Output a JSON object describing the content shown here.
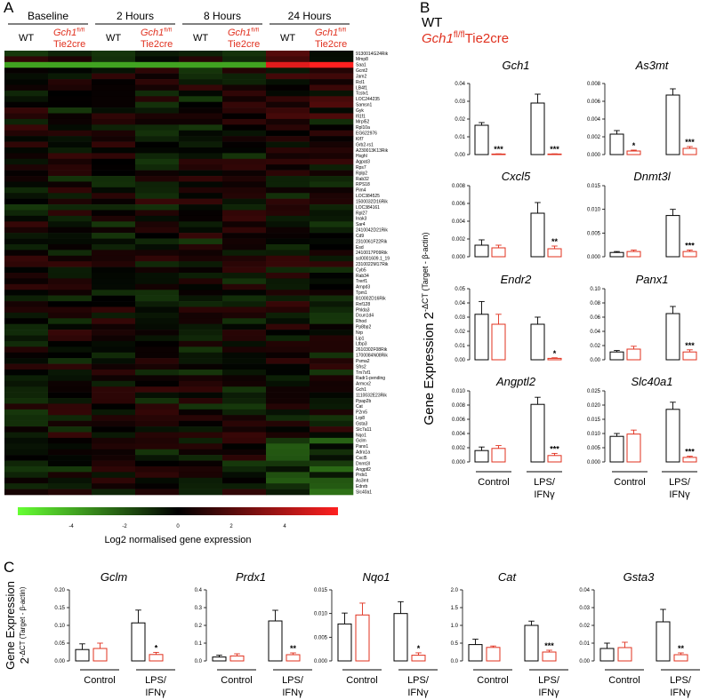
{
  "panels": {
    "a": "A",
    "b": "B",
    "c": "C"
  },
  "heatmap": {
    "timepoints": [
      "Baseline",
      "2 Hours",
      "8 Hours",
      "24 Hours"
    ],
    "genotype_wt": "WT",
    "genotype_ko_prefix": "Gch1",
    "genotype_ko_sup": "fl/fl",
    "genotype_ko_suffix": "Tie2cre",
    "genes": [
      "9130014G24Rik",
      "Mmp8",
      "Saa1",
      "Gcnt2",
      "Jam2",
      "Rcl1",
      "LB4f1",
      "Tcstv1",
      "LOC244235",
      "Samsn1",
      "Gyk",
      "Ifi1f1",
      "Mrpl52",
      "Rpl10a",
      "EG622976",
      "Klf7",
      "Grb2-rs1",
      "A230013K13Rik",
      "Hsghl",
      "Agpat3",
      "Rps7",
      "Rplp2",
      "Rab32",
      "RPS18",
      "Pim4",
      "LOC384525",
      "1500032D16Rik",
      "LOC384161",
      "Rpl27",
      "Inak3",
      "Sar4",
      "2410042D21Rik",
      "Cd9",
      "2310061F22Rik",
      "Esd",
      "2410017P09Rik",
      "scl0001609.1_19",
      "2310022M17Rik",
      "Cyb5",
      "Rab34",
      "Trerf1",
      "Arnpd3",
      "Tpm1",
      "B10002D16Rik",
      "Rnf128",
      "Phlda3",
      "Dcun1d4",
      "Rhod",
      "Pp8bp2",
      "Nrp",
      "Lip1",
      "Ltbp3",
      "2610302F08Rik",
      "1700084N08Rik",
      "Psma2",
      "Sfrs2",
      "Tm7sf1",
      "Radr1-pending",
      "Armcx2",
      "Gch1",
      "1110032E23Rik",
      "Ppap2b",
      "Cat",
      "P2rx5",
      "Lrp8",
      "Gsta3",
      "Slc7a11",
      "Nqo1",
      "Gclm",
      "Panx1",
      "Adra1a",
      "Cxcl5",
      "Dnmt3l",
      "Angptl2",
      "Prdx1",
      "As3mt",
      "Ednrb",
      "Slc40a1"
    ],
    "colorbar_ticks": [
      "-4",
      "-2",
      "0",
      "2",
      "4"
    ],
    "colorbar_values": [
      -4,
      -2,
      0,
      2,
      4
    ],
    "colorbar_label": "Log2 normalised gene expression",
    "colors": {
      "low": "#66ff33",
      "mid": "#000000",
      "high": "#ff2020"
    }
  },
  "legend_b": {
    "wt": "WT",
    "ko_prefix": "Gch1",
    "ko_sup": "fl/fl",
    "ko_suffix": "Tie2cre"
  },
  "ylabel_b": {
    "main": "Gene Expression 2",
    "sup": "-ΔCT (Target - β-actin)"
  },
  "ylabel_c": {
    "line1": "Gene Expression",
    "line2": "2",
    "sup": "-ΔCT (Target - β-actin)"
  },
  "xgroups": [
    "Control",
    "LPS/",
    "IFNγ"
  ],
  "colors": {
    "wt": "#000000",
    "ko": "#e0301e"
  },
  "chart_data": [
    {
      "type": "bar",
      "panel": "B",
      "title": "Gch1",
      "categories": [
        "Control",
        "LPS/IFNγ"
      ],
      "series": [
        {
          "name": "WT",
          "values": [
            0.0165,
            0.029
          ],
          "err": [
            0.0015,
            0.005
          ]
        },
        {
          "name": "Gch1 fl/fl Tie2cre",
          "values": [
            0.0003,
            0.0003
          ],
          "err": [
            0.0001,
            0.0001
          ]
        }
      ],
      "yticks": [
        "0.00",
        "0.01",
        "0.02",
        "0.03",
        "0.04"
      ],
      "ylim": [
        0,
        0.04
      ],
      "sig": [
        "***",
        "***"
      ]
    },
    {
      "type": "bar",
      "panel": "B",
      "title": "As3mt",
      "categories": [
        "Control",
        "LPS/IFNγ"
      ],
      "series": [
        {
          "name": "WT",
          "values": [
            0.0023,
            0.0067
          ],
          "err": [
            0.0004,
            0.0007
          ]
        },
        {
          "name": "Gch1 fl/fl Tie2cre",
          "values": [
            0.0004,
            0.0007
          ],
          "err": [
            0.0001,
            0.0002
          ]
        }
      ],
      "yticks": [
        "0.000",
        "0.002",
        "0.004",
        "0.006",
        "0.008"
      ],
      "ylim": [
        0,
        0.008
      ],
      "sig": [
        "*",
        "***"
      ]
    },
    {
      "type": "bar",
      "panel": "B",
      "title": "Cxcl5",
      "categories": [
        "Control",
        "LPS/IFNγ"
      ],
      "series": [
        {
          "name": "WT",
          "values": [
            0.0013,
            0.0049
          ],
          "err": [
            0.0006,
            0.0012
          ]
        },
        {
          "name": "Gch1 fl/fl Tie2cre",
          "values": [
            0.001,
            0.0009
          ],
          "err": [
            0.0003,
            0.0003
          ]
        }
      ],
      "yticks": [
        "0.000",
        "0.002",
        "0.004",
        "0.006",
        "0.008"
      ],
      "ylim": [
        0,
        0.008
      ],
      "sig": [
        "",
        "**"
      ]
    },
    {
      "type": "bar",
      "panel": "B",
      "title": "Dnmt3l",
      "categories": [
        "Control",
        "LPS/IFNγ"
      ],
      "series": [
        {
          "name": "WT",
          "values": [
            0.0009,
            0.0087
          ],
          "err": [
            0.0002,
            0.0013
          ]
        },
        {
          "name": "Gch1 fl/fl Tie2cre",
          "values": [
            0.0011,
            0.0011
          ],
          "err": [
            0.0003,
            0.0003
          ]
        }
      ],
      "yticks": [
        "0.000",
        "0.005",
        "0.010",
        "0.015"
      ],
      "ylim": [
        0,
        0.015
      ],
      "sig": [
        "",
        "***"
      ]
    },
    {
      "type": "bar",
      "panel": "B",
      "title": "Endr2",
      "categories": [
        "Control",
        "LPS/IFNγ"
      ],
      "series": [
        {
          "name": "WT",
          "values": [
            0.032,
            0.025
          ],
          "err": [
            0.009,
            0.005
          ]
        },
        {
          "name": "Gch1 fl/fl Tie2cre",
          "values": [
            0.025,
            0.001
          ],
          "err": [
            0.007,
            0.0004
          ]
        }
      ],
      "yticks": [
        "0.00",
        "0.01",
        "0.02",
        "0.03",
        "0.04",
        "0.05"
      ],
      "ylim": [
        0,
        0.05
      ],
      "sig": [
        "",
        "*"
      ]
    },
    {
      "type": "bar",
      "panel": "B",
      "title": "Panx1",
      "categories": [
        "Control",
        "LPS/IFNγ"
      ],
      "series": [
        {
          "name": "WT",
          "values": [
            0.011,
            0.065
          ],
          "err": [
            0.002,
            0.01
          ]
        },
        {
          "name": "Gch1 fl/fl Tie2cre",
          "values": [
            0.015,
            0.011
          ],
          "err": [
            0.004,
            0.003
          ]
        }
      ],
      "yticks": [
        "0.00",
        "0.02",
        "0.04",
        "0.06",
        "0.08",
        "0.10"
      ],
      "ylim": [
        0,
        0.1
      ],
      "sig": [
        "",
        "***"
      ]
    },
    {
      "type": "bar",
      "panel": "B",
      "title": "Angptl2",
      "categories": [
        "Control",
        "LPS/IFNγ"
      ],
      "series": [
        {
          "name": "WT",
          "values": [
            0.0016,
            0.0081
          ],
          "err": [
            0.0005,
            0.001
          ]
        },
        {
          "name": "Gch1 fl/fl Tie2cre",
          "values": [
            0.0019,
            0.0009
          ],
          "err": [
            0.0004,
            0.0003
          ]
        }
      ],
      "yticks": [
        "0.000",
        "0.002",
        "0.004",
        "0.006",
        "0.008",
        "0.010"
      ],
      "ylim": [
        0,
        0.01
      ],
      "sig": [
        "",
        "***"
      ]
    },
    {
      "type": "bar",
      "panel": "B",
      "title": "Slc40a1",
      "categories": [
        "Control",
        "LPS/IFNγ"
      ],
      "series": [
        {
          "name": "WT",
          "values": [
            0.009,
            0.0185
          ],
          "err": [
            0.001,
            0.0025
          ]
        },
        {
          "name": "Gch1 fl/fl Tie2cre",
          "values": [
            0.0098,
            0.0016
          ],
          "err": [
            0.0014,
            0.0004
          ]
        }
      ],
      "yticks": [
        "0.000",
        "0.005",
        "0.010",
        "0.015",
        "0.020",
        "0.025"
      ],
      "ylim": [
        0,
        0.025
      ],
      "sig": [
        "",
        "***"
      ]
    },
    {
      "type": "bar",
      "panel": "C",
      "title": "Gclm",
      "categories": [
        "Control",
        "LPS/IFNγ"
      ],
      "series": [
        {
          "name": "WT",
          "values": [
            0.032,
            0.107
          ],
          "err": [
            0.016,
            0.036
          ]
        },
        {
          "name": "Gch1 fl/fl Tie2cre",
          "values": [
            0.035,
            0.018
          ],
          "err": [
            0.015,
            0.006
          ]
        }
      ],
      "yticks": [
        "0.00",
        "0.05",
        "0.10",
        "0.15",
        "0.20"
      ],
      "ylim": [
        0,
        0.2
      ],
      "sig": [
        "",
        "*"
      ]
    },
    {
      "type": "bar",
      "panel": "C",
      "title": "Prdx1",
      "categories": [
        "Control",
        "LPS/IFNγ"
      ],
      "series": [
        {
          "name": "WT",
          "values": [
            0.022,
            0.225
          ],
          "err": [
            0.01,
            0.06
          ]
        },
        {
          "name": "Gch1 fl/fl Tie2cre",
          "values": [
            0.028,
            0.035
          ],
          "err": [
            0.012,
            0.01
          ]
        }
      ],
      "yticks": [
        "0.0",
        "0.1",
        "0.2",
        "0.3",
        "0.4"
      ],
      "ylim": [
        0,
        0.4
      ],
      "sig": [
        "",
        "**"
      ]
    },
    {
      "type": "bar",
      "panel": "C",
      "title": "Nqo1",
      "categories": [
        "Control",
        "LPS/IFNγ"
      ],
      "series": [
        {
          "name": "WT",
          "values": [
            0.0078,
            0.01
          ],
          "err": [
            0.0023,
            0.0025
          ]
        },
        {
          "name": "Gch1 fl/fl Tie2cre",
          "values": [
            0.0097,
            0.0012
          ],
          "err": [
            0.0025,
            0.0005
          ]
        }
      ],
      "yticks": [
        "0.000",
        "0.005",
        "0.010",
        "0.015"
      ],
      "ylim": [
        0,
        0.015
      ],
      "sig": [
        "",
        "*"
      ]
    },
    {
      "type": "bar",
      "panel": "C",
      "title": "Cat",
      "categories": [
        "Control",
        "LPS/IFNγ"
      ],
      "series": [
        {
          "name": "WT",
          "values": [
            0.46,
            1.0
          ],
          "err": [
            0.15,
            0.12
          ]
        },
        {
          "name": "Gch1 fl/fl Tie2cre",
          "values": [
            0.38,
            0.25
          ],
          "err": [
            0.04,
            0.05
          ]
        }
      ],
      "yticks": [
        "0.0",
        "0.5",
        "1.0",
        "1.5",
        "2.0"
      ],
      "ylim": [
        0,
        2.0
      ],
      "sig": [
        "",
        "***"
      ]
    },
    {
      "type": "bar",
      "panel": "C",
      "title": "Gsta3",
      "categories": [
        "Control",
        "LPS/IFNγ"
      ],
      "series": [
        {
          "name": "WT",
          "values": [
            0.007,
            0.022
          ],
          "err": [
            0.003,
            0.007
          ]
        },
        {
          "name": "Gch1 fl/fl Tie2cre",
          "values": [
            0.0075,
            0.0035
          ],
          "err": [
            0.003,
            0.001
          ]
        }
      ],
      "yticks": [
        "0.00",
        "0.01",
        "0.02",
        "0.03",
        "0.04"
      ],
      "ylim": [
        0,
        0.04
      ],
      "sig": [
        "",
        "**"
      ]
    }
  ]
}
